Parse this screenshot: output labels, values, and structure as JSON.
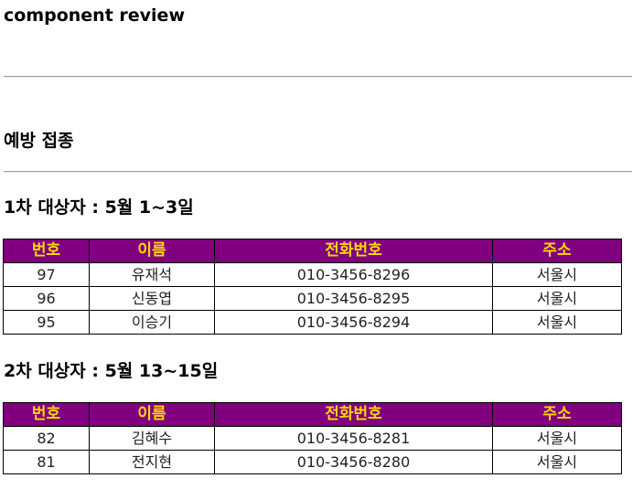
{
  "page": {
    "title": "component review"
  },
  "section": {
    "title": "예방 접종"
  },
  "colors": {
    "header_bg": "#800080",
    "header_text": "#ffd700"
  },
  "groups": [
    {
      "title": "1차 대상자 : 5월 1~3일",
      "headers": [
        "번호",
        "이름",
        "전화번호",
        "주소"
      ],
      "rows": [
        {
          "num": "97",
          "name": "유재석",
          "phone": "010-3456-8296",
          "addr": "서울시"
        },
        {
          "num": "96",
          "name": "신동엽",
          "phone": "010-3456-8295",
          "addr": "서울시"
        },
        {
          "num": "95",
          "name": "이승기",
          "phone": "010-3456-8294",
          "addr": "서울시"
        }
      ]
    },
    {
      "title": "2차 대상자 : 5월 13~15일",
      "headers": [
        "번호",
        "이름",
        "전화번호",
        "주소"
      ],
      "rows": [
        {
          "num": "82",
          "name": "김혜수",
          "phone": "010-3456-8281",
          "addr": "서울시"
        },
        {
          "num": "81",
          "name": "전지현",
          "phone": "010-3456-8280",
          "addr": "서울시"
        }
      ]
    }
  ]
}
